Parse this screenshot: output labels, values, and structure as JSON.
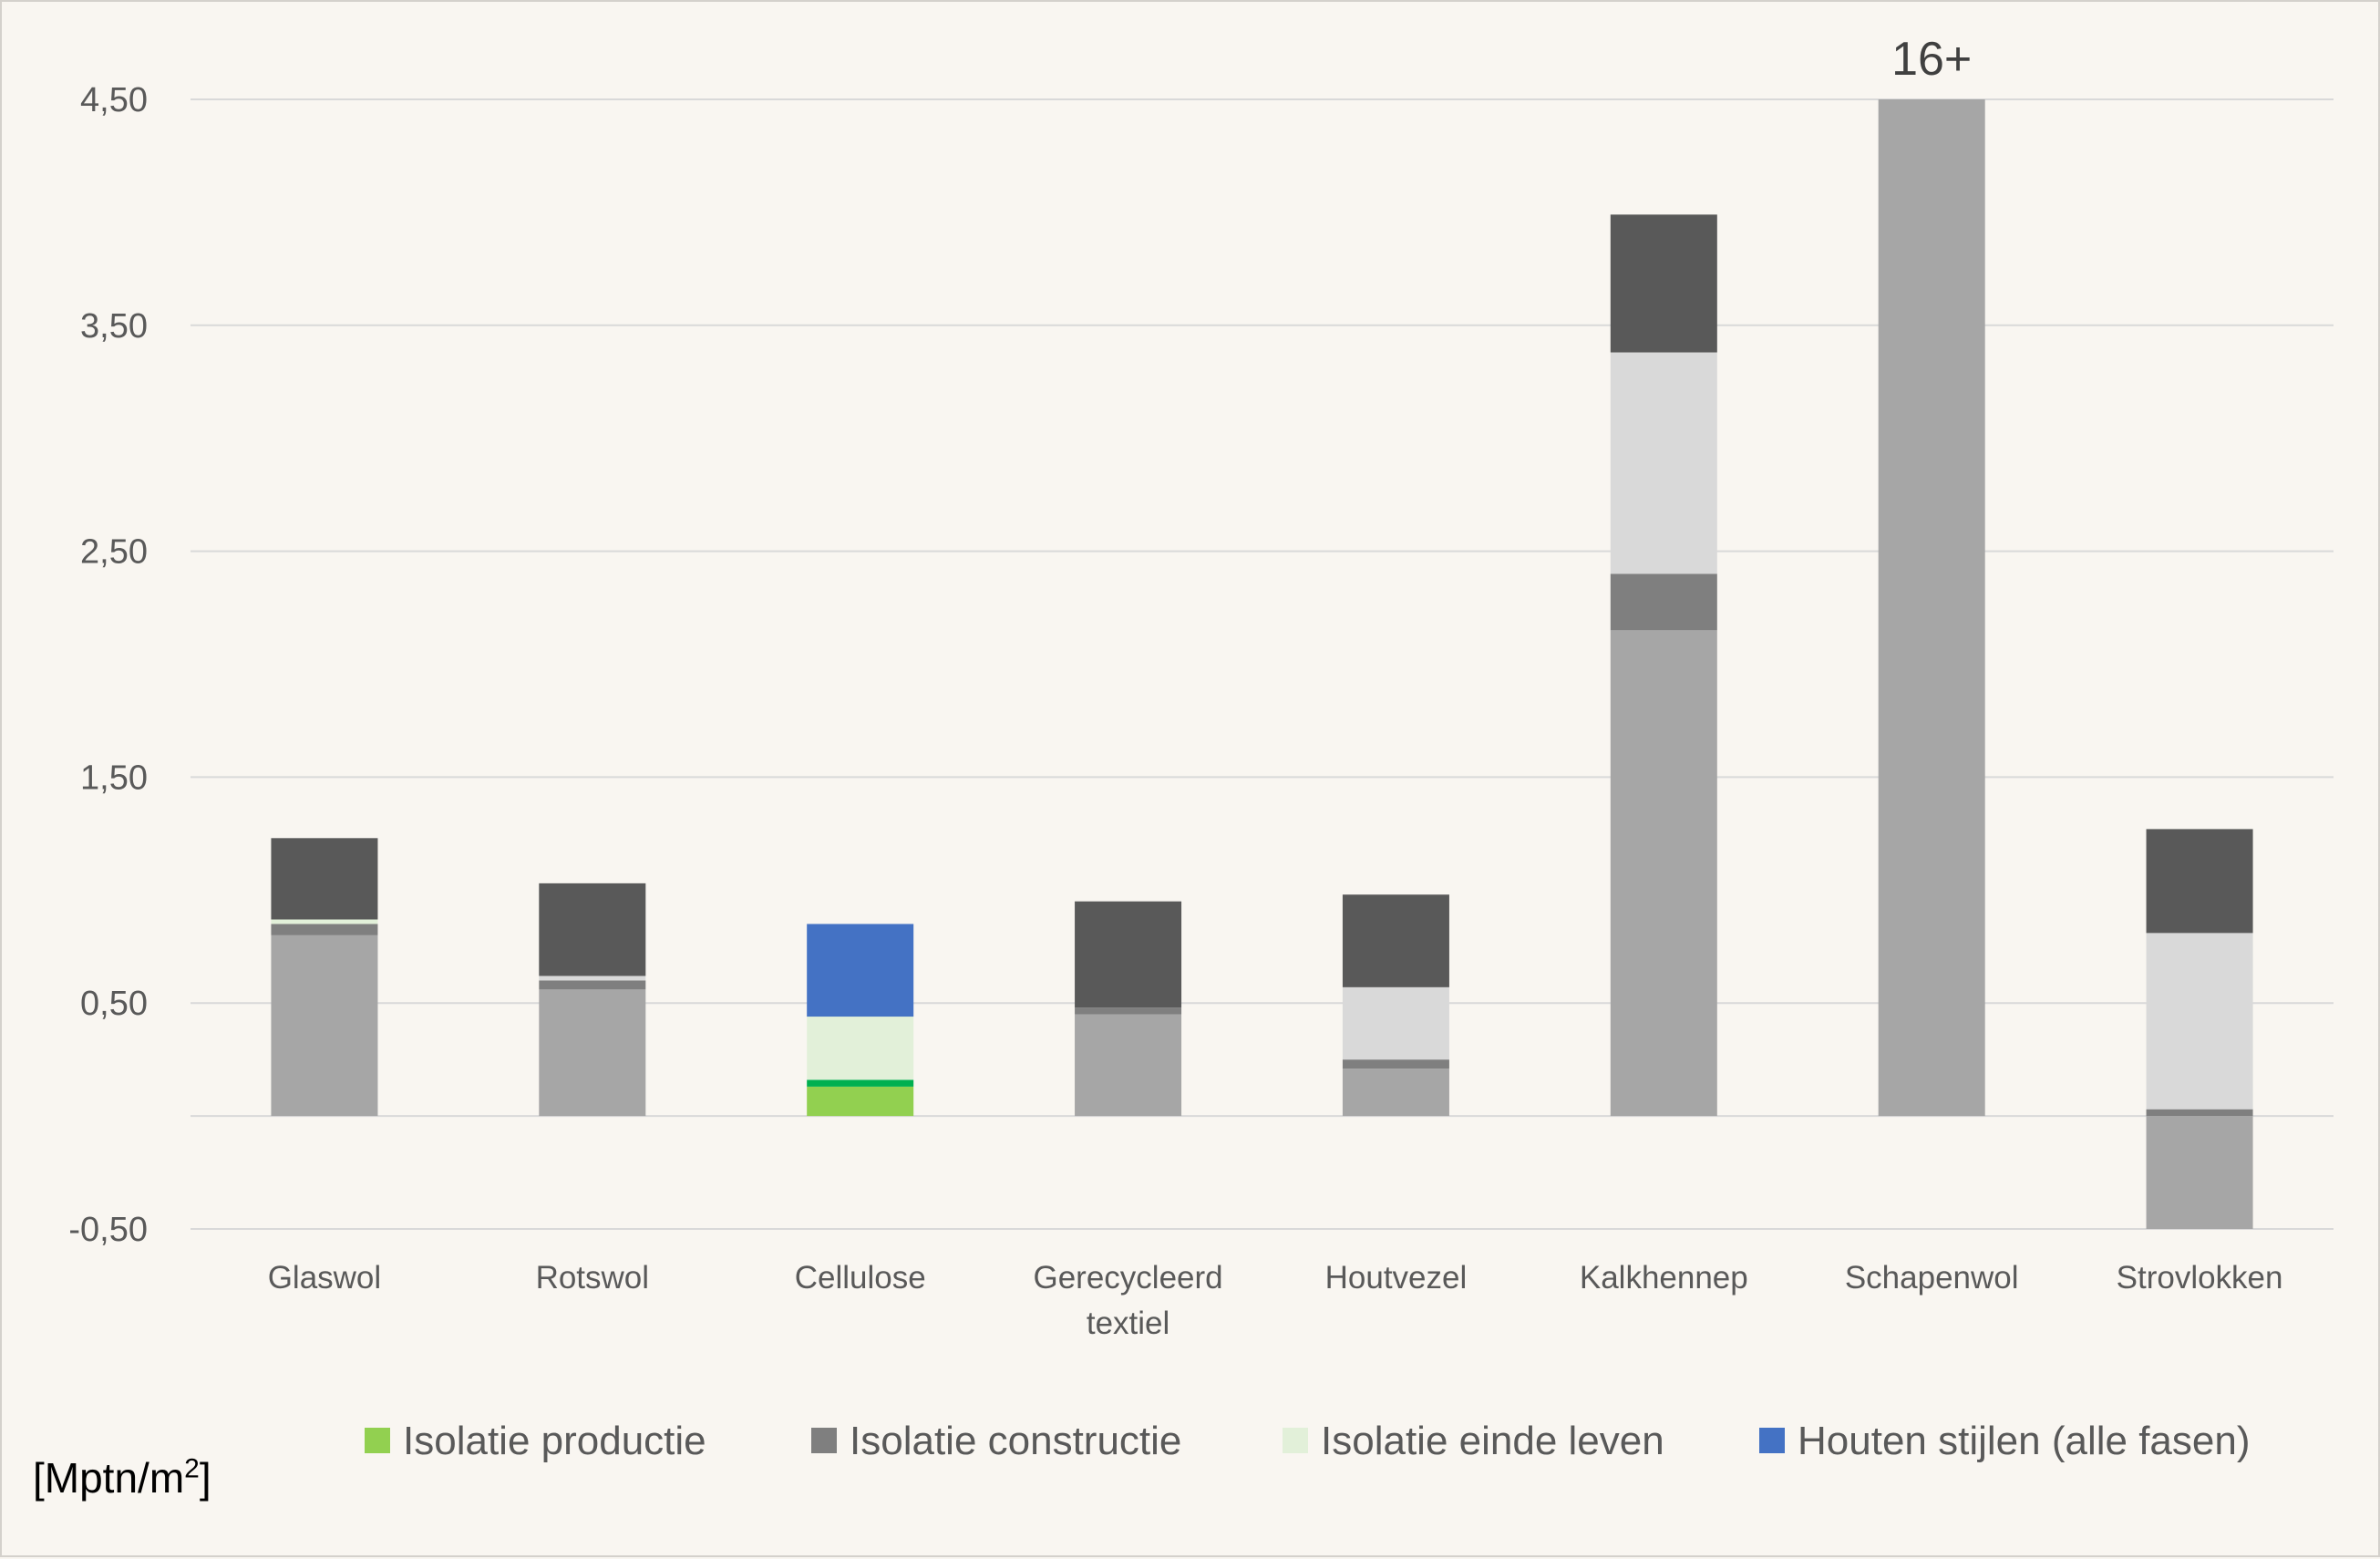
{
  "chart_data": {
    "type": "bar",
    "stacked": true,
    "categories": [
      "Glaswol",
      "Rotswol",
      "Cellulose",
      "Gerecycleerd textiel",
      "Houtvezel",
      "Kalkhennep",
      "Schapenwol",
      "Strovlokken"
    ],
    "y_ticks": [
      "-0,50",
      "0,50",
      "1,50",
      "2,50",
      "3,50",
      "4,50"
    ],
    "ylim": [
      -0.5,
      4.5
    ],
    "grid": true,
    "legend_position": "bottom",
    "legend": [
      {
        "label": "Isolatie productie",
        "color": "#92d050"
      },
      {
        "label": "Isolatie constructie",
        "color": "#7f7f7f"
      },
      {
        "label": "Isolatie einde leven",
        "color": "#e2f0d9"
      },
      {
        "label": "Houten stijlen (alle fasen)",
        "color": "#4472c4"
      }
    ],
    "bars": [
      {
        "category": "Glaswol",
        "segments": [
          {
            "start": 0,
            "end": 0.8,
            "color": "#a6a6a6"
          },
          {
            "start": 0.8,
            "end": 0.85,
            "color": "#7f7f7f"
          },
          {
            "start": 0.85,
            "end": 0.87,
            "color": "#e2f0d9"
          },
          {
            "start": 0.87,
            "end": 1.23,
            "color": "#595959"
          }
        ]
      },
      {
        "category": "Rotswol",
        "segments": [
          {
            "start": 0,
            "end": 0.56,
            "color": "#a6a6a6"
          },
          {
            "start": 0.56,
            "end": 0.6,
            "color": "#7f7f7f"
          },
          {
            "start": 0.6,
            "end": 0.62,
            "color": "#d9d9d9"
          },
          {
            "start": 0.62,
            "end": 1.03,
            "color": "#595959"
          }
        ]
      },
      {
        "category": "Cellulose",
        "segments": [
          {
            "start": 0,
            "end": 0.13,
            "color": "#92d050"
          },
          {
            "start": 0.13,
            "end": 0.16,
            "color": "#00b050"
          },
          {
            "start": 0.16,
            "end": 0.44,
            "color": "#e2f0d9"
          },
          {
            "start": 0.44,
            "end": 0.85,
            "color": "#4472c4"
          }
        ]
      },
      {
        "category": "Gerecycleerd textiel",
        "segments": [
          {
            "start": 0,
            "end": 0.45,
            "color": "#a6a6a6"
          },
          {
            "start": 0.45,
            "end": 0.48,
            "color": "#7f7f7f"
          },
          {
            "start": 0.48,
            "end": 0.95,
            "color": "#595959"
          }
        ]
      },
      {
        "category": "Houtvezel",
        "segments": [
          {
            "start": 0,
            "end": 0.21,
            "color": "#a6a6a6"
          },
          {
            "start": 0.21,
            "end": 0.25,
            "color": "#7f7f7f"
          },
          {
            "start": 0.25,
            "end": 0.57,
            "color": "#d9d9d9"
          },
          {
            "start": 0.57,
            "end": 0.98,
            "color": "#595959"
          }
        ]
      },
      {
        "category": "Kalkhennep",
        "segments": [
          {
            "start": 0,
            "end": 2.15,
            "color": "#a6a6a6"
          },
          {
            "start": 2.15,
            "end": 2.4,
            "color": "#7f7f7f"
          },
          {
            "start": 2.4,
            "end": 3.38,
            "color": "#d9d9d9"
          },
          {
            "start": 3.38,
            "end": 3.99,
            "color": "#595959"
          }
        ]
      },
      {
        "category": "Schapenwol",
        "segments": [
          {
            "start": 0,
            "end": 4.5,
            "color": "#a6a6a6"
          }
        ]
      },
      {
        "category": "Strovlokken",
        "segments": [
          {
            "start": -0.5,
            "end": 0,
            "color": "#a6a6a6"
          },
          {
            "start": 0,
            "end": 0.03,
            "color": "#7f7f7f"
          },
          {
            "start": 0.03,
            "end": 0.81,
            "color": "#d9d9d9"
          },
          {
            "start": 0.81,
            "end": 1.27,
            "color": "#595959"
          }
        ]
      }
    ],
    "annotations": [
      {
        "category": "Schapenwol",
        "text": "16+",
        "y": 4.5
      }
    ],
    "ylabel_base": "[Mptn/m",
    "ylabel_sup": "2",
    "ylabel_end": "]"
  }
}
